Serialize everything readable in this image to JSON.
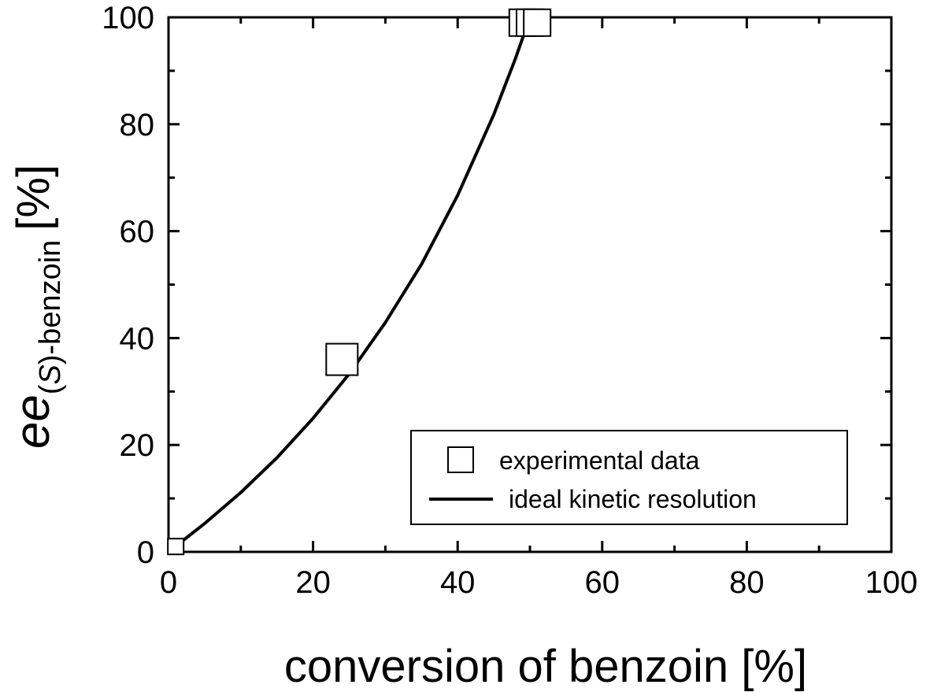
{
  "chart_data": {
    "type": "scatter",
    "xlabel": "conversion of benzoin [%]",
    "ylabel": {
      "main": "ee",
      "subscript_prefix": "(",
      "subscript_italic": "S",
      "subscript_suffix": ")-benzoin",
      "unit": "[%]"
    },
    "xlim": [
      0,
      100
    ],
    "ylim": [
      0,
      100
    ],
    "x_ticks": [
      0,
      20,
      40,
      60,
      80,
      100
    ],
    "y_ticks": [
      0,
      20,
      40,
      60,
      80,
      100
    ],
    "grid": false,
    "legend_position": "bottom-right",
    "series": [
      {
        "name": "experimental data",
        "kind": "scatter",
        "marker": "open-square",
        "points": [
          {
            "x": 1,
            "y": 1,
            "size": "small"
          },
          {
            "x": 24,
            "y": 36,
            "size": "large"
          },
          {
            "x": 49,
            "y": 99,
            "size": "medium"
          },
          {
            "x": 50,
            "y": 99,
            "size": "medium"
          },
          {
            "x": 51,
            "y": 99,
            "size": "medium"
          }
        ]
      },
      {
        "name": "ideal kinetic resolution",
        "kind": "line",
        "color": "#000000",
        "points": [
          {
            "x": 0,
            "y": 0
          },
          {
            "x": 5,
            "y": 5.3
          },
          {
            "x": 10,
            "y": 11.1
          },
          {
            "x": 15,
            "y": 17.6
          },
          {
            "x": 20,
            "y": 25.0
          },
          {
            "x": 25,
            "y": 33.3
          },
          {
            "x": 30,
            "y": 42.9
          },
          {
            "x": 35,
            "y": 53.8
          },
          {
            "x": 40,
            "y": 66.7
          },
          {
            "x": 45,
            "y": 81.8
          },
          {
            "x": 48,
            "y": 92.3
          },
          {
            "x": 50,
            "y": 100
          }
        ]
      }
    ]
  }
}
